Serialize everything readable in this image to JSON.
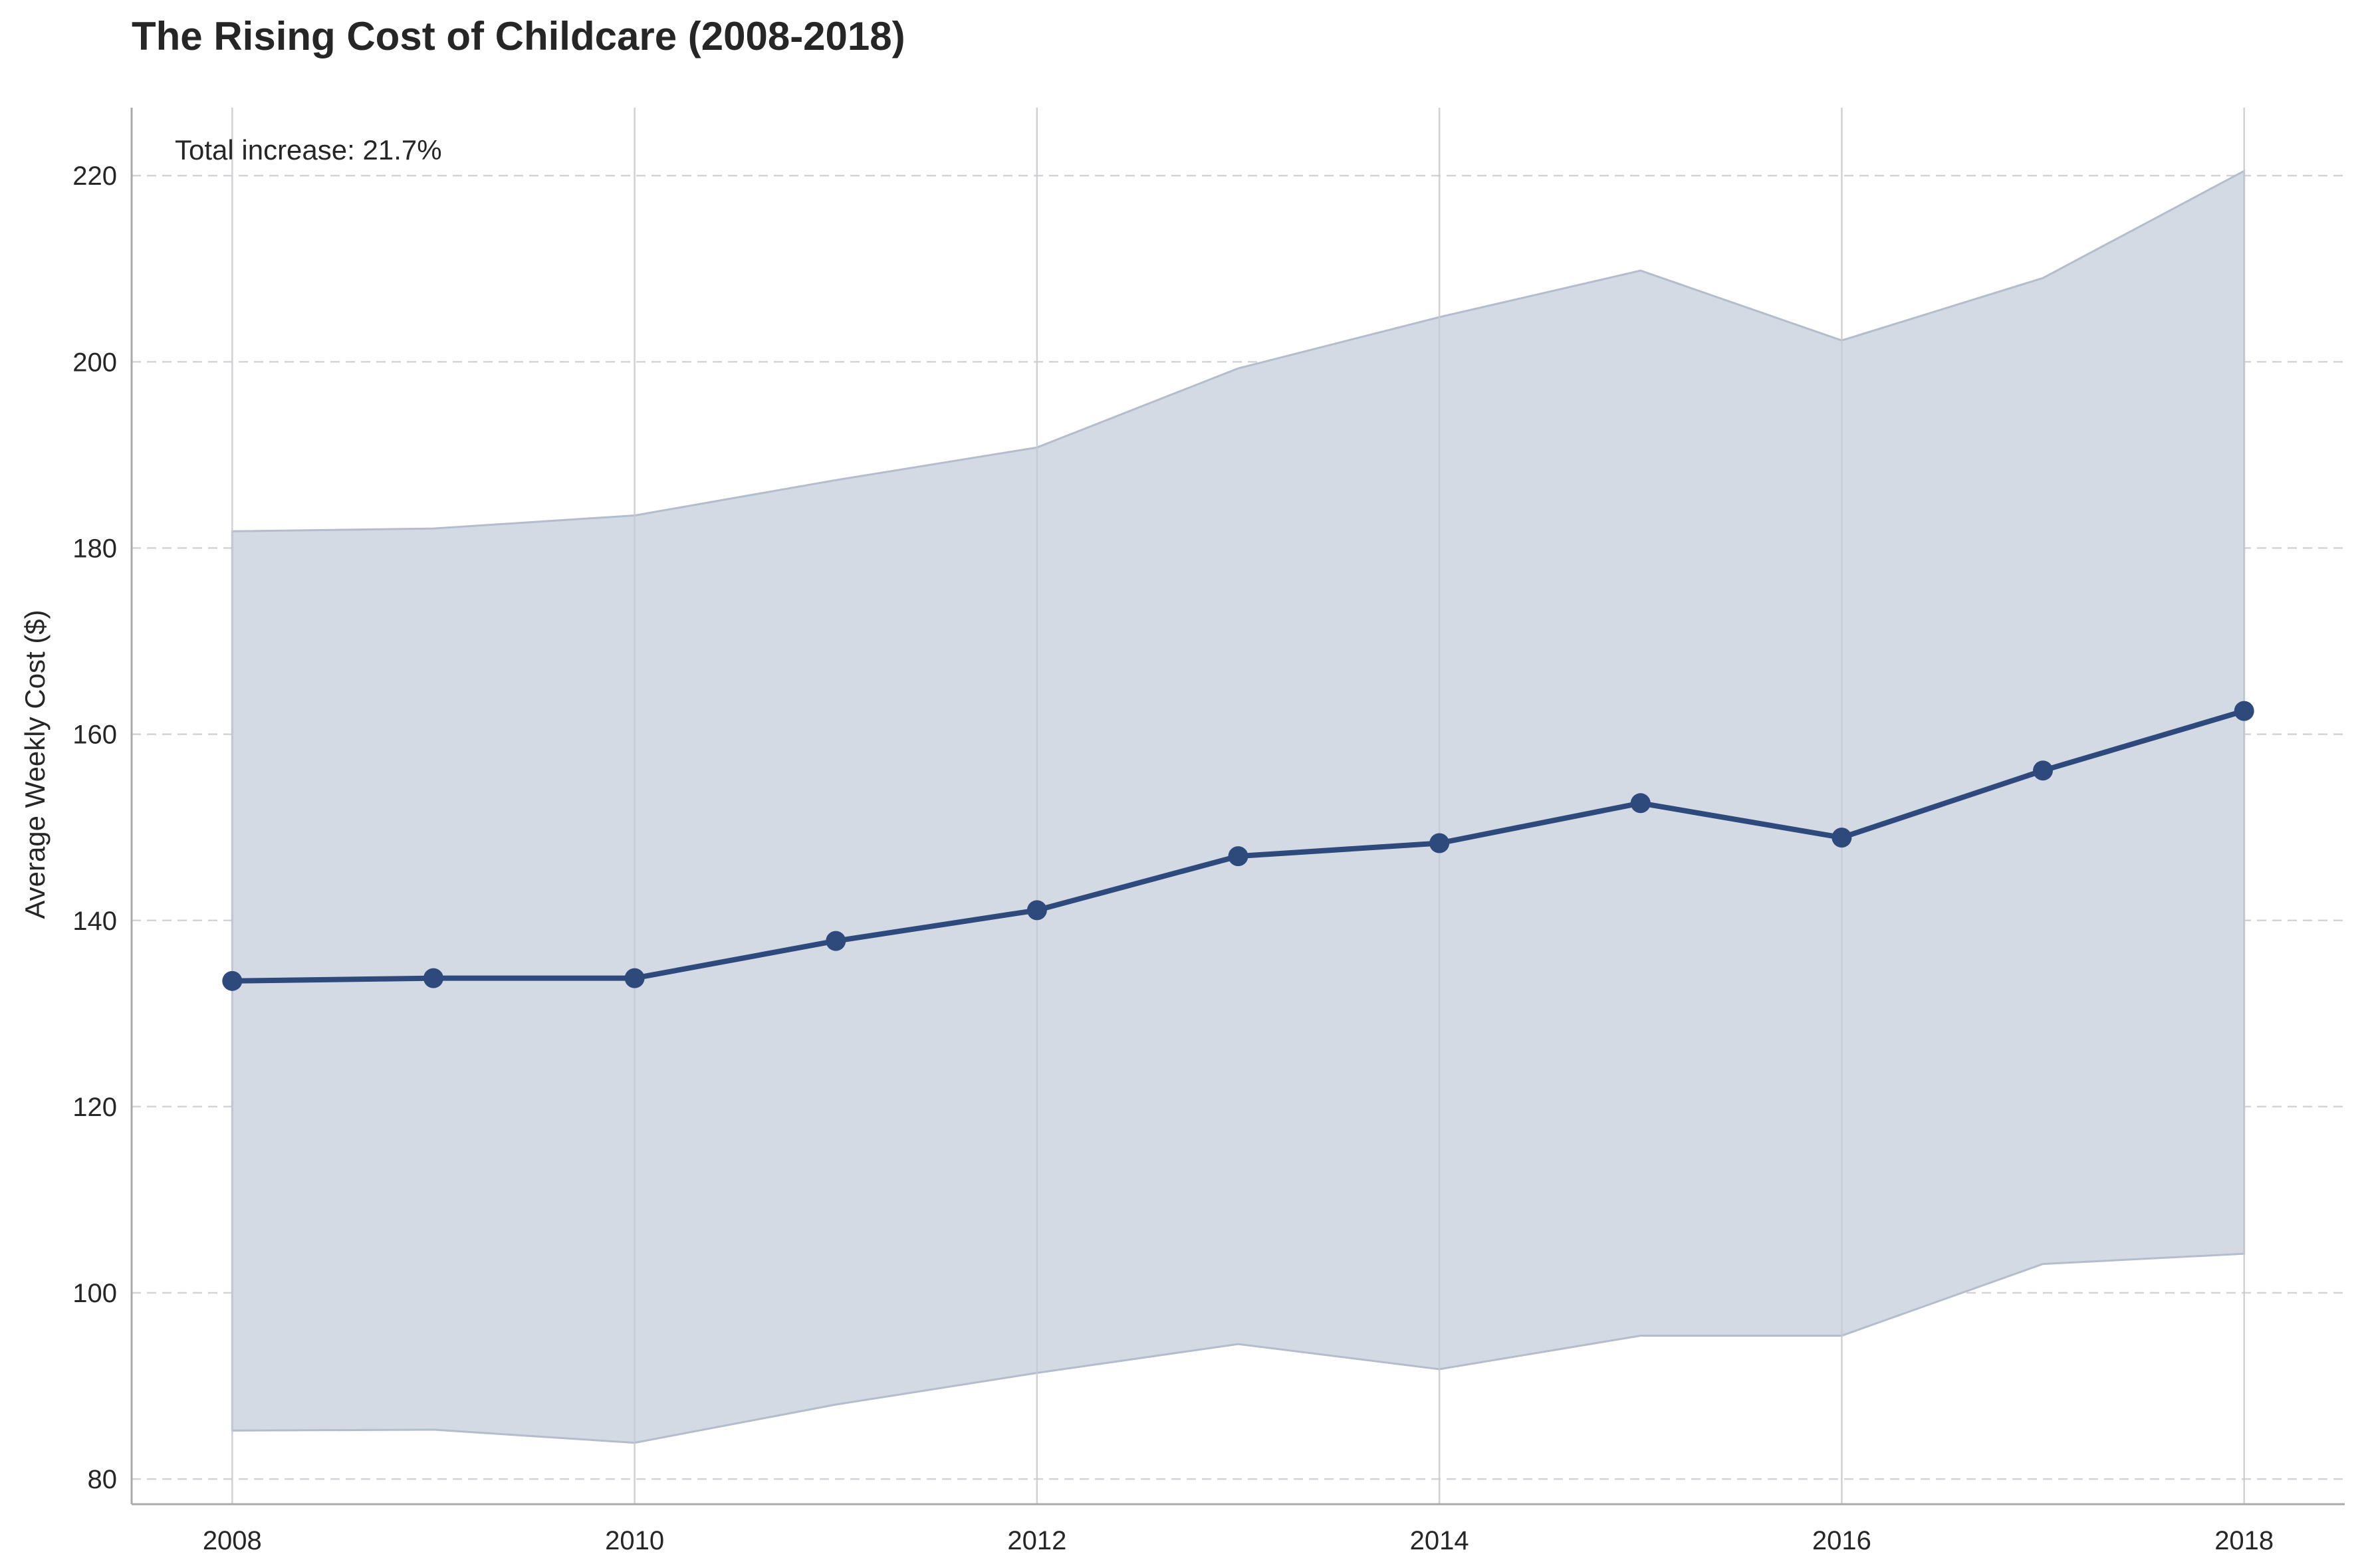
{
  "chart_data": {
    "type": "line",
    "title": "The Rising Cost of Childcare (2008-2018)",
    "xlabel": "",
    "ylabel": "Average Weekly Cost ($)",
    "annotation": "Total increase: 21.7%",
    "x": [
      2008,
      2009,
      2010,
      2011,
      2012,
      2013,
      2014,
      2015,
      2016,
      2017,
      2018
    ],
    "series": [
      {
        "values": [
          133.5,
          133.8,
          133.8,
          137.8,
          141.1,
          146.9,
          148.3,
          152.6,
          148.9,
          156.1,
          162.5
        ]
      }
    ],
    "band": {
      "upper": [
        181.8,
        182.1,
        183.5,
        187.3,
        190.8,
        199.3,
        204.8,
        209.8,
        202.3,
        209.0,
        220.5
      ],
      "lower": [
        85.2,
        85.3,
        83.9,
        88.0,
        91.4,
        94.5,
        91.8,
        95.4,
        95.4,
        103.1,
        104.2
      ]
    },
    "xticks": [
      2008,
      2010,
      2012,
      2014,
      2016,
      2018
    ],
    "yticks": [
      80,
      100,
      120,
      140,
      160,
      180,
      200,
      220
    ],
    "xlim": [
      2007.5,
      2018.5
    ],
    "ylim": [
      77.3,
      227.3
    ],
    "grid": true,
    "colors": {
      "line": "#2e4a7d",
      "band": "#d4dae4",
      "band_edge": "#b4bdcc",
      "grid_horizontal": "#d3d3d8",
      "grid_vertical": "#c7c9ce",
      "axis": "#a9a9a9"
    }
  }
}
